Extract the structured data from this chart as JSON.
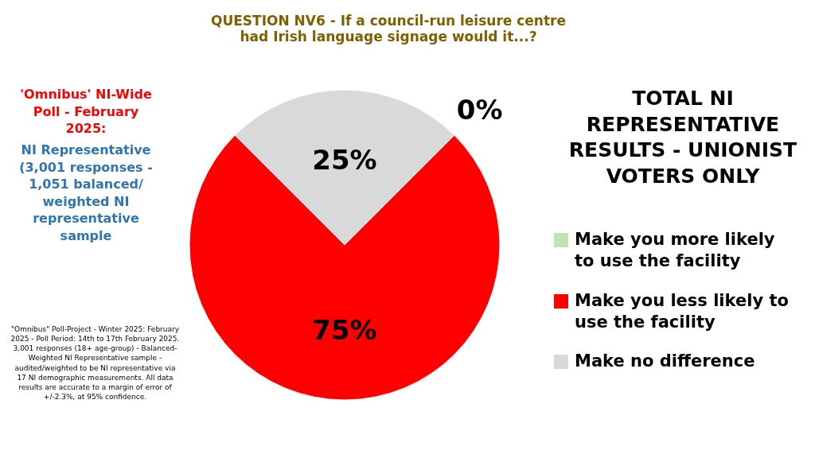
{
  "chart_data": {
    "type": "pie",
    "title": "QUESTION NV6 - If a council-run leisure centre had Irish language signage would it...?",
    "subtitle": "TOTAL NI REPRESENTATIVE RESULTS - UNIONIST VOTERS ONLY",
    "categories": [
      "Make you more likely to use the facility",
      "Make you less likely to use the facility",
      "Make no difference"
    ],
    "values": [
      0,
      75,
      25
    ],
    "value_labels": [
      "0%",
      "75%",
      "25%"
    ],
    "colors": [
      "#c5e0b4",
      "#ff0000",
      "#d9d9d9"
    ],
    "legend": "right",
    "annotations": [
      "'Omnibus' NI-Wide Poll - February 2025:",
      "NI Representative (3,001 responses - 1,051 balanced/ weighted NI representative sample",
      "\"Omnibus\" Poll-Project - Winter 2025: February 2025 - Poll Period: 14th to 17th February 2025. 3,001 responses (18+ age-group) - Balanced-Weighted NI Representative sample - audited/weighted to be NI representative via 17 NI demographic measurements. All data results are accurate to a margin of error of +/-2.3%, at 95% confidence."
    ]
  }
}
